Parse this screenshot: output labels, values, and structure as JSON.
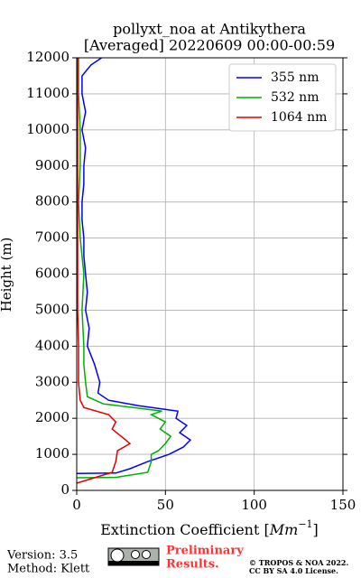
{
  "chart_data": {
    "type": "line",
    "orientation": "vertical-profile",
    "title": "pollyxt_noa at Antikythera",
    "subtitle": "[Averaged] 20220609 00:00-00:59",
    "x_label": {
      "text": "Extinction Coefficient [",
      "unit": "Mm",
      "exponent": "−1",
      "end": "]"
    },
    "y_label": "Height (m)",
    "xlim": [
      0,
      150
    ],
    "xticks": [
      0,
      50,
      100,
      150
    ],
    "ylim": [
      0,
      12000
    ],
    "yticks": [
      0,
      1000,
      2000,
      3000,
      4000,
      5000,
      6000,
      7000,
      8000,
      9000,
      10000,
      11000,
      12000
    ],
    "grid": true,
    "legend": "upper right",
    "series": [
      {
        "name": "355 nm",
        "color": "#0000ff",
        "heights": [
          470,
          480,
          600,
          800,
          1000,
          1200,
          1400,
          1600,
          1800,
          2000,
          2200,
          2350,
          2500,
          2700,
          3000,
          3500,
          4000,
          4500,
          5000,
          5500,
          6000,
          6500,
          7000,
          7500,
          8000,
          8500,
          9000,
          9500,
          10000,
          10500,
          11000,
          11500,
          11800,
          12000
        ],
        "values": [
          0,
          22,
          30,
          40,
          52,
          60,
          64,
          58,
          62,
          56,
          57,
          35,
          18,
          12,
          13,
          10,
          6,
          7,
          5,
          6,
          5,
          4,
          4,
          3,
          3,
          4,
          4,
          5,
          3,
          5,
          3,
          3,
          8,
          14
        ]
      },
      {
        "name": "532 nm",
        "color": "#00b000",
        "heights": [
          350,
          360,
          500,
          800,
          1000,
          1100,
          1300,
          1500,
          1700,
          1900,
          2100,
          2200,
          2300,
          2400,
          2600,
          3000,
          3500,
          4000,
          5000,
          6000,
          7000,
          8000,
          9000,
          10000,
          11000,
          12000
        ],
        "values": [
          0,
          22,
          40,
          42,
          42,
          46,
          50,
          53,
          47,
          50,
          42,
          48,
          32,
          15,
          6,
          5,
          4,
          4,
          3,
          4,
          2,
          1,
          2,
          2,
          1,
          1
        ]
      },
      {
        "name": "1064 nm",
        "color": "#dd0000",
        "heights": [
          200,
          500,
          800,
          1100,
          1300,
          1500,
          1700,
          1900,
          2100,
          2300,
          2500,
          3000,
          4000,
          5000,
          6000,
          7000,
          8000,
          9000,
          10000,
          11000,
          12000
        ],
        "values": [
          0,
          20,
          22,
          23,
          30,
          25,
          20,
          22,
          18,
          4,
          2,
          1,
          1,
          0.5,
          0.5,
          0.5,
          0.5,
          0.5,
          0.5,
          0.5,
          0.5
        ]
      }
    ]
  },
  "footer": {
    "version": "Version: 3.5",
    "method": "Method: Klett",
    "preliminary": [
      "Preliminary",
      "Results."
    ],
    "copyright": [
      "© TROPOS & NOA 2022.",
      "CC BY SA 4.0 License."
    ]
  }
}
